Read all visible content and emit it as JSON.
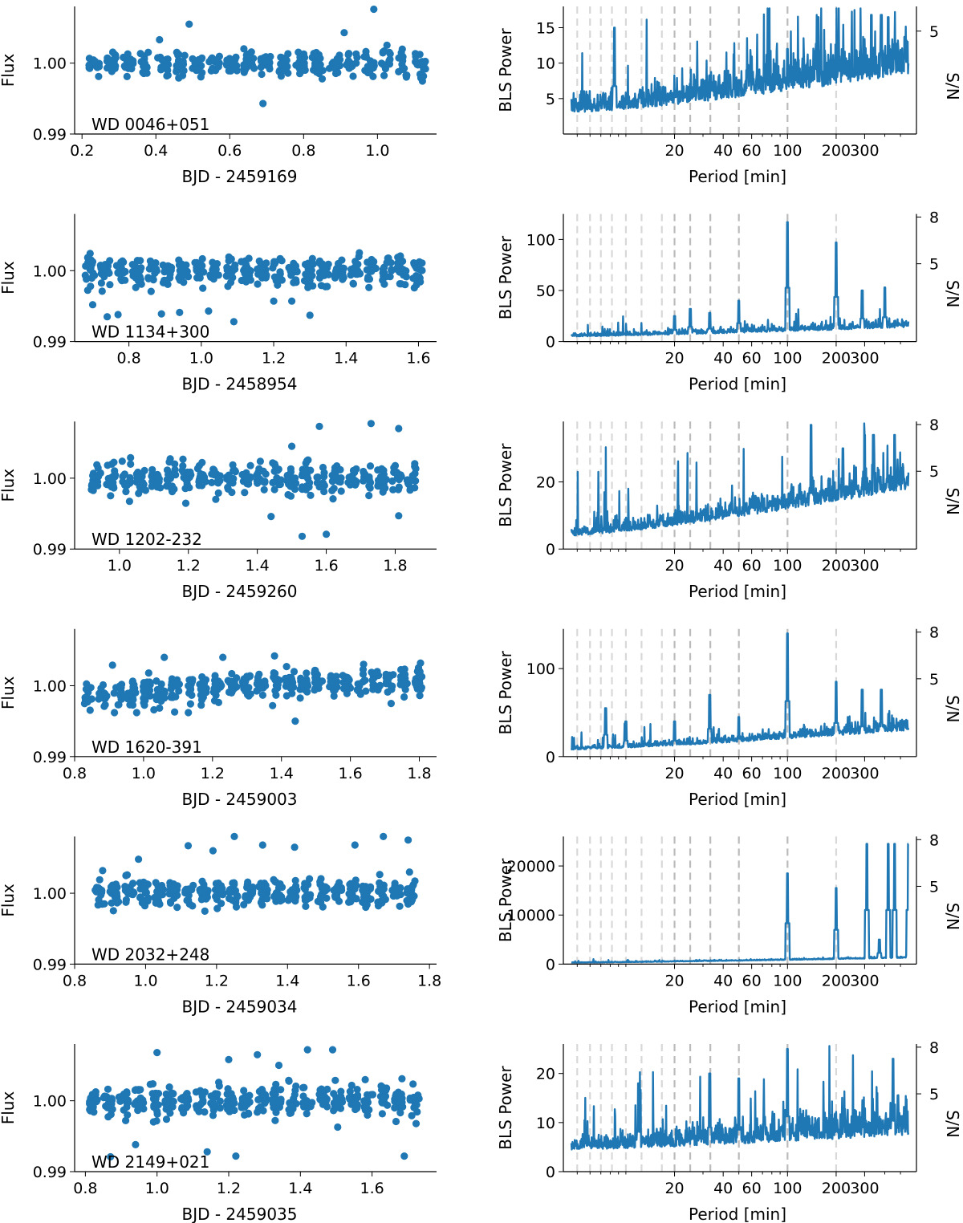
{
  "chart_data": {
    "type": "scatter",
    "color": "#1f77b4",
    "lc_ylabel": "Flux",
    "lc_yticks": [
      0.99,
      1.0
    ],
    "lc_ytick_labels": [
      "0.99",
      "1.00"
    ],
    "lc_ylim": [
      0.99,
      1.008
    ],
    "bls_ylabel": "BLS Power",
    "bls_xlabel": "Period [min]",
    "sn_label": "S/N",
    "period_ticks": [
      20,
      40,
      60,
      100,
      200,
      300
    ],
    "period_tick_labels": [
      "20",
      "40",
      "60",
      "100",
      "200",
      "300"
    ],
    "period_range": [
      4.6,
      560
    ],
    "harmonic_periods": [
      5.0,
      6.0,
      7.0,
      8.2,
      10.0,
      12.5,
      16.7,
      20.0,
      25.0,
      33.3,
      50.0,
      100.0,
      200.0
    ],
    "rows": [
      {
        "name": "WD 0046+051",
        "xlabel": "BJD - 2459169",
        "xlim": [
          0.18,
          1.16
        ],
        "xticks": [
          0.2,
          0.4,
          0.6,
          0.8,
          1.0
        ],
        "xtick_labels": [
          "0.2",
          "0.4",
          "0.6",
          "0.8",
          "1.0"
        ],
        "t_range": [
          0.21,
          1.14
        ],
        "n_segments": 20,
        "scatter_sd": 0.0012,
        "outliers": [
          [
            0.49,
            1.0055
          ],
          [
            0.69,
            0.9943
          ],
          [
            0.91,
            1.0043
          ],
          [
            0.99,
            1.0076
          ],
          [
            0.41,
            1.0033
          ]
        ],
        "bls_ylim": [
          0,
          18
        ],
        "bls_yticks": [
          5,
          10,
          15
        ],
        "bls_ytick_labels": [
          "5",
          "10",
          "15"
        ],
        "sn_yticks": [
          5
        ],
        "sn_ytick_labels": [
          "5"
        ],
        "sn_ylim": [
          0,
          6.2
        ],
        "bls_base": [
          3.0,
          8.5
        ],
        "bls_noise": 3.2,
        "bls_peaks": [
          [
            8.5,
            15.0
          ],
          [
            100,
            12.0
          ],
          [
            155,
            16.5
          ],
          [
            330,
            16.8
          ],
          [
            380,
            16.8
          ],
          [
            420,
            16.5
          ]
        ]
      },
      {
        "name": "WD 1134+300",
        "xlabel": "BJD - 2458954",
        "xlim": [
          0.65,
          1.65
        ],
        "xticks": [
          0.8,
          1.0,
          1.2,
          1.4,
          1.6
        ],
        "xtick_labels": [
          "0.8",
          "1.0",
          "1.2",
          "1.4",
          "1.6"
        ],
        "t_range": [
          0.67,
          1.62
        ],
        "n_segments": 22,
        "scatter_sd": 0.0014,
        "outliers": [
          [
            0.74,
            0.9935
          ],
          [
            0.77,
            0.9938
          ],
          [
            0.89,
            0.9939
          ],
          [
            0.94,
            0.9941
          ],
          [
            1.02,
            0.9943
          ],
          [
            1.09,
            0.9928
          ],
          [
            1.2,
            0.9957
          ],
          [
            1.25,
            0.9957
          ],
          [
            1.3,
            0.9937
          ],
          [
            0.7,
            0.9952
          ]
        ],
        "bls_ylim": [
          0,
          125
        ],
        "bls_yticks": [
          0,
          50,
          100
        ],
        "bls_ytick_labels": [
          "0",
          "50",
          "100"
        ],
        "sn_yticks": [
          5,
          8
        ],
        "sn_ytick_labels": [
          "5",
          "8"
        ],
        "sn_ylim": [
          0,
          8.2
        ],
        "bls_base": [
          5.0,
          14.0
        ],
        "bls_noise": 4.0,
        "bls_peaks": [
          [
            100,
            117
          ],
          [
            200,
            97
          ],
          [
            290,
            50
          ],
          [
            400,
            53
          ],
          [
            50,
            40
          ],
          [
            25,
            32
          ],
          [
            33,
            28
          ],
          [
            20,
            25
          ]
        ]
      },
      {
        "name": "WD 1202-232",
        "xlabel": "BJD - 2459260",
        "xlim": [
          0.87,
          1.92
        ],
        "xticks": [
          1.0,
          1.2,
          1.4,
          1.6,
          1.8
        ],
        "xtick_labels": [
          "1.0",
          "1.2",
          "1.4",
          "1.6",
          "1.8"
        ],
        "t_range": [
          0.91,
          1.87
        ],
        "n_segments": 22,
        "scatter_sd": 0.0015,
        "outliers": [
          [
            1.53,
            0.9918
          ],
          [
            1.6,
            0.9921
          ],
          [
            1.44,
            0.9946
          ],
          [
            1.81,
            0.9947
          ],
          [
            1.58,
            1.0073
          ],
          [
            1.73,
            1.0077
          ],
          [
            1.81,
            1.007
          ],
          [
            1.5,
            1.0045
          ]
        ],
        "bls_ylim": [
          0,
          38
        ],
        "bls_yticks": [
          0,
          20
        ],
        "bls_ytick_labels": [
          "0",
          "20"
        ],
        "sn_yticks": [
          5,
          8
        ],
        "sn_ytick_labels": [
          "5",
          "8"
        ],
        "sn_ylim": [
          0,
          8.2
        ],
        "bls_base": [
          4.0,
          18.0
        ],
        "bls_noise": 4.0,
        "bls_peaks": [
          [
            140,
            37
          ],
          [
            300,
            34
          ],
          [
            340,
            34
          ],
          [
            460,
            34
          ],
          [
            220,
            30
          ]
        ]
      },
      {
        "name": "WD 1620-391",
        "xlabel": "BJD - 2459003",
        "xlim": [
          0.8,
          1.85
        ],
        "xticks": [
          0.8,
          1.0,
          1.2,
          1.4,
          1.6,
          1.8
        ],
        "xtick_labels": [
          "0.8",
          "1.0",
          "1.2",
          "1.4",
          "1.6",
          "1.8"
        ],
        "t_range": [
          0.82,
          1.82
        ],
        "n_segments": 24,
        "scatter_sd": 0.0012,
        "trend": [
          0.9985,
          1.0005
        ],
        "outliers": [
          [
            1.44,
            0.995
          ],
          [
            1.03,
            0.9966
          ],
          [
            0.98,
            0.9962
          ],
          [
            1.13,
            0.9962
          ],
          [
            1.09,
            0.9963
          ],
          [
            1.38,
            1.0042
          ],
          [
            1.06,
            1.004
          ],
          [
            1.23,
            1.004
          ],
          [
            0.91,
            1.0029
          ]
        ],
        "bls_ylim": [
          0,
          145
        ],
        "bls_yticks": [
          0,
          100
        ],
        "bls_ytick_labels": [
          "0",
          "100"
        ],
        "sn_yticks": [
          5,
          8
        ],
        "sn_ytick_labels": [
          "5",
          "8"
        ],
        "sn_ylim": [
          0,
          8.2
        ],
        "bls_base": [
          8.0,
          30.0
        ],
        "bls_noise": 6.0,
        "bls_peaks": [
          [
            100,
            140
          ],
          [
            200,
            85
          ],
          [
            290,
            76
          ],
          [
            380,
            76
          ],
          [
            33,
            70
          ],
          [
            7.5,
            55
          ],
          [
            50,
            45
          ],
          [
            20,
            40
          ],
          [
            10,
            40
          ]
        ]
      },
      {
        "name": "WD 2032+248",
        "xlabel": "BJD - 2459034",
        "xlim": [
          0.8,
          1.82
        ],
        "xticks": [
          0.8,
          1.0,
          1.2,
          1.4,
          1.6,
          1.8
        ],
        "xtick_labels": [
          "0.8",
          "1.0",
          "1.2",
          "1.4",
          "1.6",
          "1.8"
        ],
        "t_range": [
          0.85,
          1.77
        ],
        "n_segments": 22,
        "scatter_sd": 0.0013,
        "outliers": [
          [
            1.12,
            1.0067
          ],
          [
            1.25,
            1.008
          ],
          [
            1.33,
            1.0068
          ],
          [
            1.42,
            1.0065
          ],
          [
            1.59,
            1.0068
          ],
          [
            1.67,
            1.008
          ],
          [
            1.74,
            1.0075
          ],
          [
            1.19,
            1.006
          ],
          [
            0.98,
            1.0048
          ]
        ],
        "bls_ylim": [
          0,
          26000
        ],
        "bls_yticks": [
          0,
          10000,
          20000
        ],
        "bls_ytick_labels": [
          "0",
          "10000",
          "20000"
        ],
        "sn_yticks": [
          5,
          8
        ],
        "sn_ytick_labels": [
          "5",
          "8"
        ],
        "sn_ylim": [
          0,
          8.2
        ],
        "bls_base": [
          300,
          1300
        ],
        "bls_noise": 120,
        "bls_peaks": [
          [
            100,
            18500
          ],
          [
            200,
            15500
          ],
          [
            310,
            24500
          ],
          [
            420,
            24500
          ],
          [
            460,
            24500
          ],
          [
            560,
            24500
          ],
          [
            370,
            5000
          ]
        ]
      },
      {
        "name": "WD 2149+021",
        "xlabel": "BJD - 2459035",
        "xlim": [
          0.77,
          1.78
        ],
        "xticks": [
          0.8,
          1.0,
          1.2,
          1.4,
          1.6
        ],
        "xtick_labels": [
          "0.8",
          "1.0",
          "1.2",
          "1.4",
          "1.6"
        ],
        "t_range": [
          0.8,
          1.74
        ],
        "n_segments": 22,
        "scatter_sd": 0.0014,
        "outliers": [
          [
            0.94,
            0.9938
          ],
          [
            1.14,
            0.9928
          ],
          [
            1.22,
            0.9922
          ],
          [
            1.69,
            0.9922
          ],
          [
            0.87,
            0.9921
          ],
          [
            1.0,
            1.0068
          ],
          [
            1.2,
            1.0058
          ],
          [
            1.28,
            1.0065
          ],
          [
            1.42,
            1.0072
          ],
          [
            1.49,
            1.0072
          ],
          [
            1.34,
            1.005
          ]
        ],
        "bls_ylim": [
          0,
          26
        ],
        "bls_yticks": [
          0,
          10,
          20
        ],
        "bls_ytick_labels": [
          "0",
          "10",
          "20"
        ],
        "sn_yticks": [
          5,
          8
        ],
        "sn_ytick_labels": [
          "5",
          "8"
        ],
        "sn_ylim": [
          0,
          8.2
        ],
        "bls_base": [
          4.5,
          7.5
        ],
        "bls_noise": 3.5,
        "bls_peaks": [
          [
            100,
            25
          ],
          [
            450,
            23
          ],
          [
            33,
            20
          ],
          [
            50,
            19
          ],
          [
            12,
            18
          ]
        ]
      }
    ]
  }
}
